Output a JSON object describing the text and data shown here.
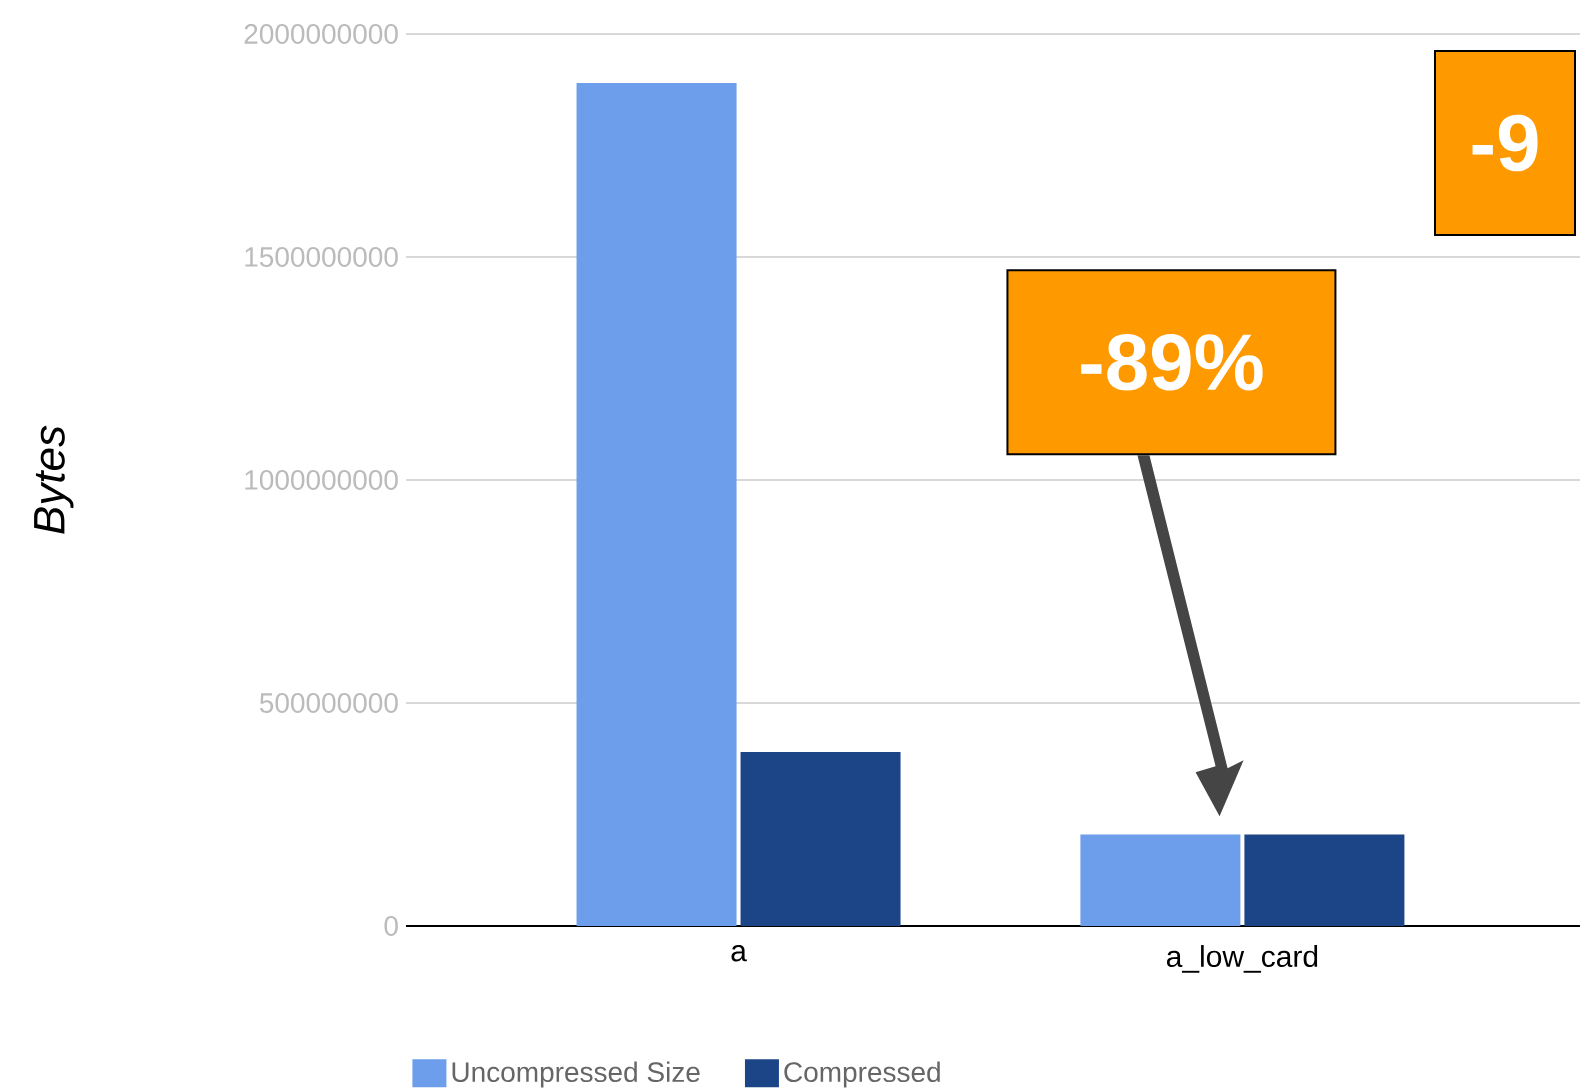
{
  "chart_data": {
    "type": "bar",
    "ylabel": "Bytes",
    "categories": [
      "a",
      "a_low_card"
    ],
    "series": [
      {
        "name": "Uncompressed Size",
        "color": "#6d9eeb",
        "values": [
          1890000000,
          205000000
        ]
      },
      {
        "name": "Compressed",
        "color": "#1c4587",
        "values": [
          390000000,
          205000000
        ]
      }
    ],
    "ylim": [
      0,
      2000000000
    ],
    "yticks": [
      0,
      500000000,
      1000000000,
      1500000000,
      2000000000
    ],
    "grid": "y",
    "legend": "bottom left",
    "annotations": [
      "-89%",
      "-9"
    ]
  }
}
